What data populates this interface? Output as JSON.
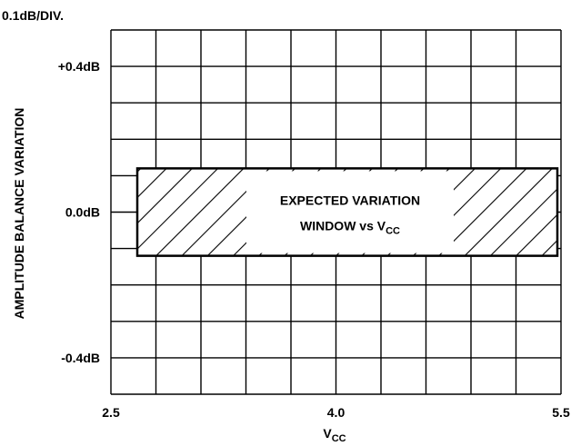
{
  "chart_data": {
    "type": "area",
    "scale_note": "0.1dB/DIV.",
    "ylabel": "AMPLITUDE BALANCE VARIATION",
    "xlabel": {
      "main": "V",
      "sub": "CC"
    },
    "xlim": [
      2.5,
      5.5
    ],
    "ylim": [
      -0.5,
      0.5
    ],
    "x_ticks": [
      {
        "value": 2.5,
        "label": "2.5"
      },
      {
        "value": 4.0,
        "label": "4.0"
      },
      {
        "value": 5.5,
        "label": "5.5"
      }
    ],
    "y_ticks": [
      {
        "value": 0.4,
        "label": "+0.4dB"
      },
      {
        "value": 0.0,
        "label": "0.0dB"
      },
      {
        "value": -0.4,
        "label": "-0.4dB"
      }
    ],
    "grid": true,
    "x_divisions": 10,
    "y_divisions": 10,
    "window": {
      "x_range": [
        2.7,
        5.5
      ],
      "y_range": [
        -0.12,
        0.12
      ],
      "fill": "hatched",
      "label_line1": "EXPECTED VARIATION",
      "label_line2_main": "WINDOW vs V",
      "label_line2_sub": "CC"
    }
  },
  "colors": {
    "line": "#000000",
    "background": "#ffffff"
  }
}
